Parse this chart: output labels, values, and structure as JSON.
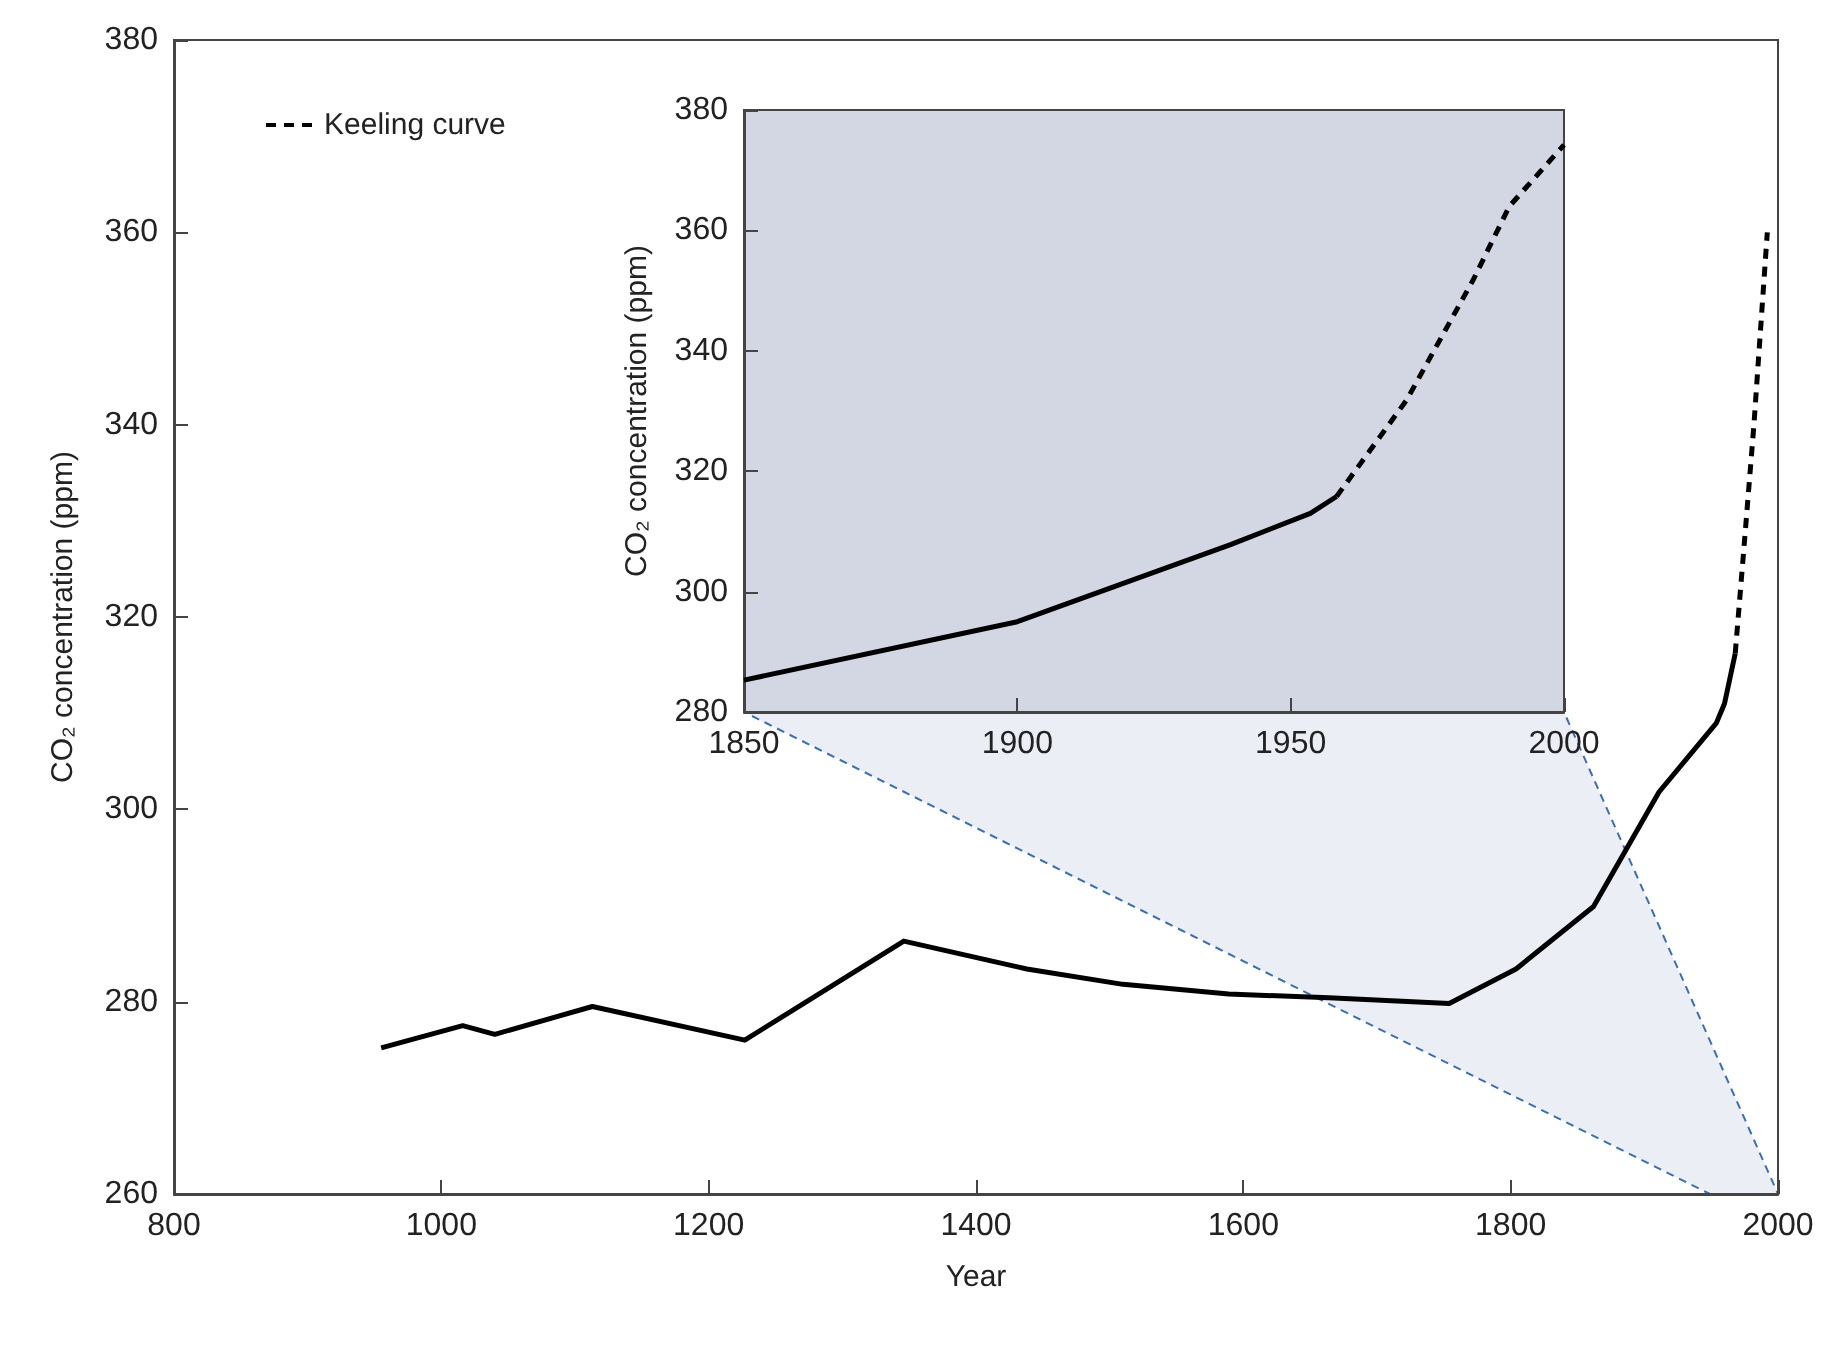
{
  "chart_data": [
    {
      "type": "line",
      "xlabel": "Year",
      "ylabel": "CO₂ concentration (ppm)",
      "xlim": [
        800,
        2000
      ],
      "xticks": [
        800,
        1000,
        1200,
        1400,
        1600,
        1800,
        2000
      ],
      "ylim": [
        260,
        380
      ],
      "yticks": [
        260,
        280,
        300,
        320,
        340,
        360,
        380
      ],
      "grid": false,
      "legend": "top left",
      "marker": "none",
      "series": [
        {
          "color": "#000000",
          "line_style": "solid",
          "x": [
            955,
            1016,
            1040,
            1113,
            1227,
            1346,
            1438,
            1510,
            1589,
            1664,
            1754,
            1804,
            1862,
            1911,
            1954,
            1960,
            1968
          ],
          "values": [
            275.2,
            277.5,
            276.6,
            279.5,
            276,
            286.3,
            283.4,
            281.8,
            280.8,
            280.4,
            279.8,
            283.4,
            289.9,
            301.8,
            309,
            311,
            316.2
          ]
        },
        {
          "name": "Keeling curve",
          "color": "#000000",
          "line_style": "dashed",
          "x": [
            1968,
            1975,
            1982,
            1988,
            1992
          ],
          "values": [
            316.2,
            328,
            340,
            352,
            360
          ]
        }
      ]
    },
    {
      "type": "line",
      "ylabel": "CO₂ concentration (ppm)",
      "xlim": [
        1850,
        2000
      ],
      "xticks": [
        1850,
        1900,
        1950,
        2000
      ],
      "ylim": [
        280,
        380
      ],
      "yticks": [
        280,
        300,
        320,
        340,
        360,
        380
      ],
      "grid": false,
      "marker": "none",
      "series": [
        {
          "color": "#000000",
          "line_style": "solid",
          "x": [
            1850,
            1900,
            1939,
            1953.6,
            1958.4
          ],
          "values": [
            285.3,
            295,
            307.8,
            313,
            315.8
          ]
        },
        {
          "color": "#000000",
          "line_style": "dashed",
          "x": [
            1958.4,
            1971.2,
            1983.4,
            1990,
            2000
          ],
          "values": [
            315.8,
            331.8,
            351.8,
            364,
            374.2
          ]
        }
      ]
    }
  ]
}
